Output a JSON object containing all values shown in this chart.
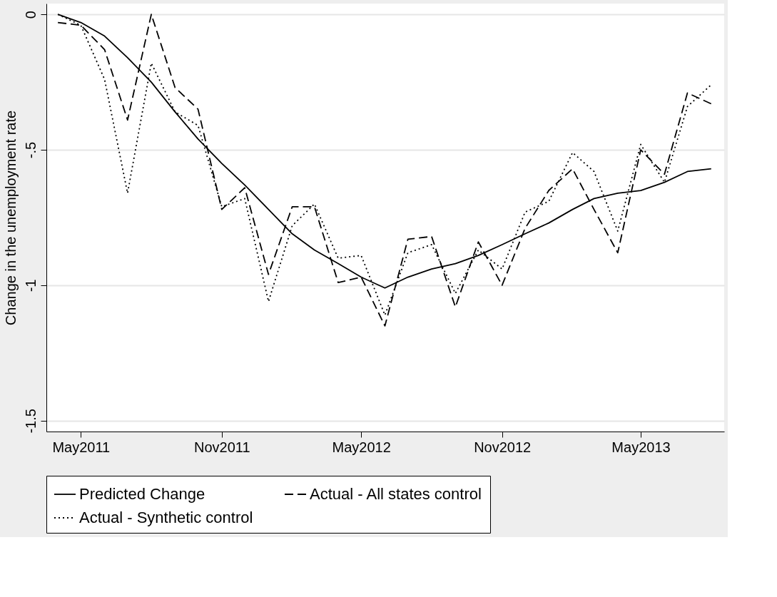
{
  "chart_data": {
    "type": "line",
    "ylabel": "Change in the unemployment rate",
    "x": [
      "2011-04",
      "2011-05",
      "2011-06",
      "2011-07",
      "2011-08",
      "2011-09",
      "2011-10",
      "2011-11",
      "2011-12",
      "2012-01",
      "2012-02",
      "2012-03",
      "2012-04",
      "2012-05",
      "2012-06",
      "2012-07",
      "2012-08",
      "2012-09",
      "2012-10",
      "2012-11",
      "2012-12",
      "2013-01",
      "2013-02",
      "2013-03",
      "2013-04",
      "2013-05",
      "2013-06",
      "2013-07",
      "2013-08"
    ],
    "series": [
      {
        "name": "Predicted Change",
        "color": "#000000",
        "line_style": "solid",
        "values": [
          0,
          -0.03,
          -0.08,
          -0.16,
          -0.25,
          -0.36,
          -0.46,
          -0.55,
          -0.63,
          -0.72,
          -0.81,
          -0.87,
          -0.92,
          -0.97,
          -1.01,
          -0.97,
          -0.94,
          -0.92,
          -0.89,
          -0.85,
          -0.81,
          -0.77,
          -0.72,
          -0.68,
          -0.66,
          -0.65,
          -0.62,
          -0.58,
          -0.57
        ]
      },
      {
        "name": "Actual - All states control",
        "color": "#000000",
        "line_style": "dashed",
        "values": [
          -0.03,
          -0.04,
          -0.13,
          -0.39,
          0.0,
          -0.27,
          -0.35,
          -0.72,
          -0.64,
          -0.96,
          -0.71,
          -0.71,
          -0.99,
          -0.97,
          -1.15,
          -0.83,
          -0.82,
          -1.08,
          -0.84,
          -1.0,
          -0.79,
          -0.65,
          -0.57,
          -0.72,
          -0.88,
          -0.5,
          -0.59,
          -0.29,
          -0.33
        ]
      },
      {
        "name": "Actual - Synthetic control",
        "color": "#000000",
        "line_style": "dotted",
        "values": [
          0,
          -0.04,
          -0.24,
          -0.66,
          -0.18,
          -0.36,
          -0.41,
          -0.71,
          -0.68,
          -1.06,
          -0.78,
          -0.7,
          -0.9,
          -0.89,
          -1.11,
          -0.88,
          -0.85,
          -1.03,
          -0.87,
          -0.94,
          -0.73,
          -0.69,
          -0.51,
          -0.58,
          -0.8,
          -0.48,
          -0.62,
          -0.34,
          -0.26
        ]
      }
    ],
    "xlim": [
      "2011-03-17",
      "2013-08-18"
    ],
    "xticks": [
      {
        "value": "2011-05",
        "label": "May2011"
      },
      {
        "value": "2011-11",
        "label": "Nov2011"
      },
      {
        "value": "2012-05",
        "label": "May2012"
      },
      {
        "value": "2012-11",
        "label": "Nov2012"
      },
      {
        "value": "2013-05",
        "label": "May2013"
      }
    ],
    "ylim": [
      -1.54,
      0.04
    ],
    "yticks": [
      {
        "value": 0,
        "label": "0"
      },
      {
        "value": -0.5,
        "label": "-.5"
      },
      {
        "value": -1,
        "label": "-1"
      },
      {
        "value": -1.5,
        "label": "-1.5"
      }
    ],
    "grid": "y",
    "legend": "bottom",
    "marker": "none"
  }
}
